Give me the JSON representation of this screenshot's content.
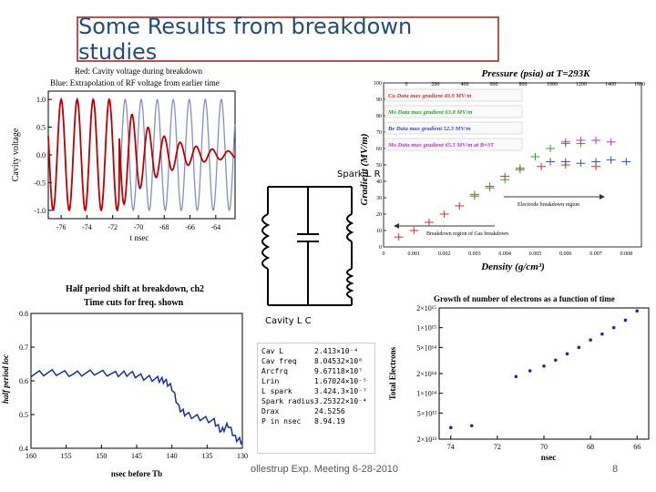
{
  "slide": {
    "title": "Some Results from breakdown studies",
    "footer": "ollestrup Exp. Meeting 6-28-2010",
    "page_number": "8"
  },
  "cavity_plot": {
    "legend_red": "Red: Cavity voltage during breakdown",
    "legend_blue": "Blue:  Extrapolation of RF voltage from earlier time",
    "ylabel": "Cavity voltage",
    "xlabel": "t nsec",
    "x_ticks": [
      "-76",
      "-74",
      "-72",
      "-70",
      "-68",
      "-66",
      "-64"
    ],
    "y_ticks": [
      "1.0",
      "0.5",
      "0.0",
      "-0.5",
      "-1.0"
    ],
    "colors": {
      "red": "#c00000",
      "blue": "#8090c0"
    }
  },
  "gradient_plot": {
    "top_title": "Pressure (psia) at T=293K",
    "top_ticks": [
      "0",
      "200",
      "400",
      "600",
      "800",
      "1000",
      "1200",
      "1400",
      "1600"
    ],
    "ylabel": "Gradient (MV/m)",
    "xlabel": "Density (g/cm³)",
    "x_ticks": [
      "0",
      "0.001",
      "0.002",
      "0.003",
      "0.004",
      "0.005",
      "0.006",
      "0.007",
      "0.008"
    ],
    "y_ticks": [
      "100",
      "90",
      "80",
      "70",
      "60",
      "50",
      "40",
      "30",
      "20",
      "10",
      "0"
    ],
    "legend": [
      {
        "label": "Cu Data   max gradient 49.9 MV/m",
        "color": "#d03030"
      },
      {
        "label": "Mo Data   max gradient 63.8 MV/m",
        "color": "#30a030"
      },
      {
        "label": "Be Data   max gradient 52.3 MV/m",
        "color": "#3050c0"
      },
      {
        "label": "Mo Data   max gradient 65.5 MV/m at B=3T",
        "color": "#c030c0"
      }
    ],
    "annot_metal": "Electrode breakdown region",
    "annot_gas": "Breakdown region of Gas breakdown"
  },
  "circuit": {
    "spark_label": "Spark  L R",
    "cavity_label": "Cavity L C"
  },
  "phase_plot": {
    "title1": "Half period shift at breakdown, ch2",
    "title2": "Time cuts for freq. shown",
    "ylabel": "half period loc",
    "xlabel": "nsec before Tb",
    "x_ticks": [
      "160",
      "155",
      "150",
      "145",
      "140",
      "135",
      "130"
    ],
    "y_ticks": [
      "0.8",
      "0.7",
      "0.6",
      "0.5",
      "0.4"
    ],
    "color": "#1a2fa0"
  },
  "params": [
    {
      "name": "Cav L",
      "value": "2.413×10⁻⁴"
    },
    {
      "name": "Cav freq",
      "value": "8.04532×10⁸"
    },
    {
      "name": "Arcfrq",
      "value": "9.67118×10⁷"
    },
    {
      "name": "Lrin",
      "value": "1.67024×10⁻⁵"
    },
    {
      "name": "L spark",
      "value": "3.424.3×10⁻⁷"
    },
    {
      "name": "Spark radius",
      "value": "3.25322×10⁻⁴"
    },
    {
      "name": "Drax",
      "value": "24.5256"
    },
    {
      "name": "P in nsec",
      "value": "8.94.19"
    }
  ],
  "electrons_plot": {
    "title": "Growth of number of electrons as a function of time",
    "ylabel": "Total Electrons",
    "xlabel": "nsec",
    "y_ticks": [
      "2×10¹⁵",
      "1×10¹⁵",
      "5×10¹⁴",
      "2×10¹⁴",
      "1×10¹⁴",
      "5×10¹³",
      "2×10¹³"
    ],
    "x_ticks": [
      "74",
      "72",
      "70",
      "68",
      "66"
    ],
    "color": "#1a2fa0"
  },
  "chart_data": [
    {
      "type": "line",
      "title": "",
      "xlabel": "t nsec",
      "ylabel": "Cavity voltage",
      "xlim": [
        -77,
        -62.5
      ],
      "ylim": [
        -1.15,
        1.15
      ],
      "series": [
        {
          "name": "Red: Cavity voltage during breakdown",
          "x_start": -77,
          "x_end": -62.5,
          "breakdown_at": -71.5,
          "period": 1.243
        },
        {
          "name": "Blue:  Extrapolation of RF voltage from earlier time",
          "x_start": -77,
          "x_end": -62.5,
          "period": 1.243,
          "amplitude": 1.0
        }
      ]
    },
    {
      "type": "scatter",
      "title": "Pressure (psia) at T=293K",
      "xlabel": "Density (g/cm³)",
      "ylabel": "Gradient (MV/m)",
      "xlim": [
        0,
        0.0085
      ],
      "ylim": [
        0,
        100
      ],
      "series": [
        {
          "name": "Cu Data   max gradient 49.9 MV/m",
          "x": [
            0.0005,
            0.001,
            0.0015,
            0.002,
            0.0025,
            0.003,
            0.0035,
            0.004,
            0.0045,
            0.0052,
            0.006,
            0.007
          ],
          "y": [
            6,
            10,
            15,
            20,
            25,
            31,
            37,
            43,
            48,
            49,
            50,
            49
          ]
        },
        {
          "name": "Mo Data   max gradient 63.8 MV/m",
          "x": [
            0.003,
            0.0035,
            0.004,
            0.0045,
            0.005,
            0.0055,
            0.006,
            0.0065
          ],
          "y": [
            32,
            36,
            41,
            47,
            55,
            60,
            63,
            63
          ]
        },
        {
          "name": "Be Data   max gradient 52.3 MV/m",
          "x": [
            0.0055,
            0.006,
            0.0065,
            0.007,
            0.0075,
            0.008
          ],
          "y": [
            52,
            52,
            51,
            52,
            53,
            52
          ]
        },
        {
          "name": "Mo Data   max gradient 65.5 MV/m at B=3T",
          "x": [
            0.006,
            0.0065,
            0.007,
            0.0075
          ],
          "y": [
            64,
            65,
            65,
            64
          ]
        }
      ]
    },
    {
      "type": "line",
      "title": "Half period shift at breakdown, ch2",
      "xlabel": "nsec before Tb",
      "ylabel": "half period loc",
      "xlim": [
        160,
        130
      ],
      "ylim": [
        0.4,
        0.8
      ],
      "series": [
        {
          "name": "",
          "x": [
            160,
            157,
            154,
            151,
            148,
            146,
            144,
            142,
            141,
            140,
            139,
            138,
            136,
            134,
            133,
            132,
            131,
            130
          ],
          "y": [
            0.62,
            0.625,
            0.62,
            0.625,
            0.62,
            0.622,
            0.61,
            0.605,
            0.6,
            0.58,
            0.52,
            0.5,
            0.49,
            0.48,
            0.45,
            0.47,
            0.43,
            0.42
          ]
        }
      ]
    },
    {
      "type": "scatter",
      "title": "Growth of number of electrons as a function of time",
      "xlabel": "nsec",
      "ylabel": "Total Electrons",
      "xlim": [
        74.5,
        65.5
      ],
      "ylim": [
        20000000000000.0,
        2000000000000000.0
      ],
      "log_y": true,
      "series": [
        {
          "name": "",
          "x": [
            74,
            73.1,
            71.2,
            70.6,
            70.0,
            69.5,
            69.0,
            68.5,
            68.0,
            67.5,
            67.0,
            66.5,
            66.0
          ],
          "y": [
            30000000000000.0,
            32000000000000.0,
            180000000000000.0,
            220000000000000.0,
            260000000000000.0,
            320000000000000.0,
            400000000000000.0,
            500000000000000.0,
            650000000000000.0,
            800000000000000.0,
            1000000000000000.0,
            1300000000000000.0,
            1800000000000000.0
          ]
        }
      ]
    }
  ]
}
